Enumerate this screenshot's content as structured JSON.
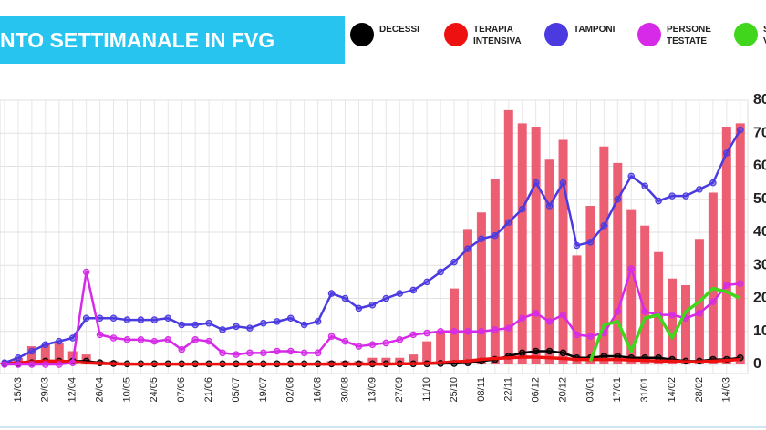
{
  "chart_data": {
    "type": "bar-line",
    "title": "NTO SETTIMANALE IN FVG",
    "categories": [
      null,
      "15/03",
      null,
      "29/03",
      null,
      "12/04",
      null,
      "26/04",
      null,
      "10/05",
      null,
      "24/05",
      null,
      "07/06",
      null,
      "21/06",
      null,
      "05/07",
      null,
      "19/07",
      null,
      "02/08",
      null,
      "16/08",
      null,
      "30/08",
      null,
      "13/09",
      null,
      "27/09",
      null,
      "11/10",
      null,
      "25/10",
      null,
      "08/11",
      null,
      "22/11",
      null,
      "06/12",
      null,
      "20/12",
      null,
      "03/01",
      null,
      "17/01",
      null,
      "31/01",
      null,
      "14/02",
      null,
      "28/02",
      null,
      "14/03",
      null
    ],
    "bars": {
      "color": "#ec5f73",
      "values": [
        0.5,
        2,
        5.5,
        6,
        6.5,
        4,
        3,
        1,
        1,
        0,
        0,
        0,
        0,
        0,
        0,
        0,
        0,
        0,
        0,
        0,
        0,
        0,
        0,
        0,
        1,
        1,
        1,
        2,
        2,
        2,
        3,
        7,
        10,
        23,
        41,
        46,
        56,
        77,
        73,
        72,
        62,
        68,
        33,
        48,
        66,
        61,
        47,
        42,
        34,
        26,
        24,
        38,
        52,
        72,
        73
      ]
    },
    "series": [
      {
        "name": "DECESSI",
        "color": "#000000",
        "markers": true,
        "values": [
          0.2,
          0.3,
          0.5,
          1,
          1,
          1,
          1,
          0.5,
          0.3,
          0.2,
          0.2,
          0.2,
          0.2,
          0.2,
          0.2,
          0.2,
          0.2,
          0.2,
          0.2,
          0.2,
          0.2,
          0.2,
          0.2,
          0.2,
          0.2,
          0.2,
          0.2,
          0.2,
          0.2,
          0.2,
          0.2,
          0.2,
          0.3,
          0.3,
          0.5,
          1,
          1.5,
          2.5,
          3.5,
          4,
          4,
          3.5,
          2,
          2,
          2.5,
          2.5,
          2,
          2,
          2,
          1.5,
          1,
          1,
          1.5,
          1.5,
          2
        ]
      },
      {
        "name": "TERAPIA INTENSIVA",
        "color": "#ee1111",
        "markers": false,
        "values": [
          0.3,
          0.5,
          0.8,
          1,
          1,
          0.8,
          0.5,
          0.3,
          0.2,
          0.1,
          0.1,
          0.1,
          0.1,
          0.1,
          0.1,
          0.1,
          0.1,
          0.1,
          0.1,
          0.1,
          0.1,
          0.1,
          0.1,
          0.1,
          0.1,
          0.1,
          0.1,
          0.1,
          0.1,
          0.2,
          0.2,
          0.3,
          0.5,
          0.8,
          1,
          1.5,
          1.8,
          2,
          2.2,
          2.2,
          2,
          1.8,
          1.5,
          1.5,
          1.5,
          1.5,
          1.3,
          1.2,
          1,
          1,
          0.8,
          0.8,
          1,
          1.2,
          1.5
        ]
      },
      {
        "name": "TAMPONI",
        "color": "#4a3ae0",
        "markers": true,
        "values": [
          0.5,
          2,
          4,
          6,
          7,
          8,
          14,
          14,
          14,
          13.5,
          13.5,
          13.5,
          14,
          12,
          12,
          12.5,
          10.5,
          11.5,
          11,
          12.5,
          13,
          14,
          12,
          13,
          21.5,
          20,
          17,
          18,
          20,
          21.5,
          22.5,
          25,
          28,
          31,
          35,
          38,
          39,
          43,
          47,
          55,
          48,
          55,
          36,
          37,
          42,
          50,
          57,
          54,
          49.5,
          51,
          51,
          53,
          55,
          64,
          71
        ]
      },
      {
        "name": "PERSONE TESTATE",
        "color": "#d62ae8",
        "markers": true,
        "values": [
          0,
          0,
          0,
          0,
          0,
          0.5,
          28,
          9,
          8,
          7.5,
          7.5,
          7,
          7.5,
          4.5,
          7.5,
          7,
          3.5,
          3,
          3.5,
          3.5,
          4,
          4,
          3.5,
          3.5,
          8.5,
          7,
          5.5,
          6,
          6.5,
          7.5,
          9,
          9.5,
          10,
          10,
          10,
          10,
          10.5,
          11,
          14,
          15.5,
          13,
          15,
          9,
          8.5,
          9.5,
          16,
          29,
          16,
          15,
          15,
          14,
          15.5,
          19,
          24,
          24.5
        ]
      },
      {
        "name": "SOM VAC",
        "color": "#3fd61c",
        "markers": false,
        "values": [
          null,
          null,
          null,
          null,
          null,
          null,
          null,
          null,
          null,
          null,
          null,
          null,
          null,
          null,
          null,
          null,
          null,
          null,
          null,
          null,
          null,
          null,
          null,
          null,
          null,
          null,
          null,
          null,
          null,
          null,
          null,
          null,
          null,
          null,
          null,
          null,
          null,
          null,
          null,
          null,
          null,
          null,
          null,
          1,
          12,
          13,
          4,
          14,
          15,
          8,
          16,
          19,
          23,
          22,
          20
        ]
      }
    ],
    "ylim": [
      0,
      80
    ],
    "yticks": [
      0,
      10,
      20,
      30,
      40,
      50,
      60,
      70,
      80
    ],
    "grid": true
  }
}
